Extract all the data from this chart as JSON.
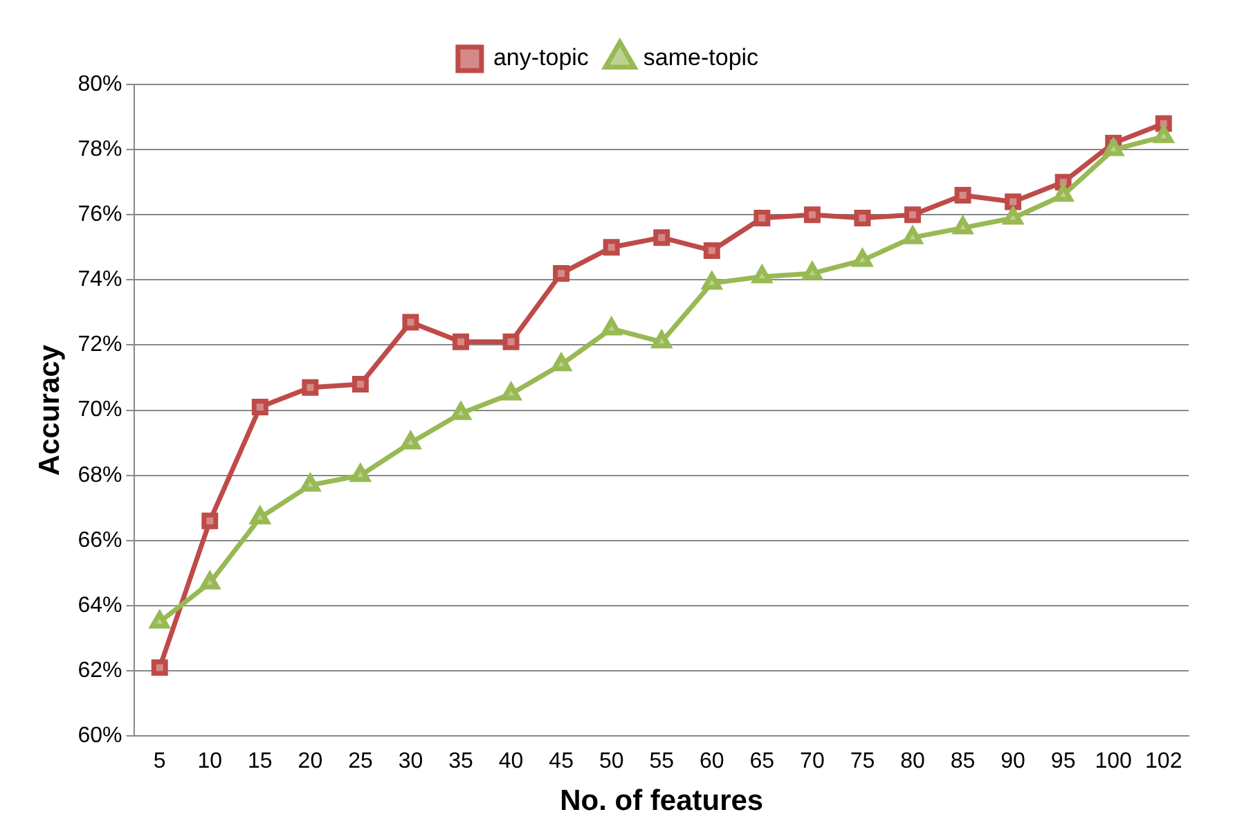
{
  "chart_data": {
    "type": "line",
    "xlabel": "No. of features",
    "ylabel": "Accuracy",
    "categories": [
      "5",
      "10",
      "15",
      "20",
      "25",
      "30",
      "35",
      "40",
      "45",
      "50",
      "55",
      "60",
      "65",
      "70",
      "75",
      "80",
      "85",
      "90",
      "95",
      "100",
      "102"
    ],
    "series": [
      {
        "name": "any-topic",
        "color": "#be4b48",
        "marker": "square",
        "values": [
          62.1,
          66.6,
          70.1,
          70.7,
          70.8,
          72.7,
          72.1,
          72.1,
          74.2,
          75.0,
          75.3,
          74.9,
          75.9,
          76.0,
          75.9,
          76.0,
          76.6,
          76.4,
          77.0,
          78.2,
          78.8
        ]
      },
      {
        "name": "same-topic",
        "color": "#98b954",
        "marker": "triangle",
        "values": [
          63.5,
          64.7,
          66.7,
          67.7,
          68.0,
          69.0,
          69.9,
          70.5,
          71.4,
          72.5,
          72.1,
          73.9,
          74.1,
          74.2,
          74.6,
          75.3,
          75.6,
          75.9,
          76.6,
          78.0,
          78.4
        ]
      }
    ],
    "ylim": [
      60,
      80
    ],
    "yticks": [
      {
        "value": 60,
        "label": "60%"
      },
      {
        "value": 62,
        "label": "62%"
      },
      {
        "value": 64,
        "label": "64%"
      },
      {
        "value": 66,
        "label": "66%"
      },
      {
        "value": 68,
        "label": "68%"
      },
      {
        "value": 70,
        "label": "70%"
      },
      {
        "value": 72,
        "label": "72%"
      },
      {
        "value": 74,
        "label": "74%"
      },
      {
        "value": 76,
        "label": "76%"
      },
      {
        "value": 78,
        "label": "78%"
      },
      {
        "value": 80,
        "label": "80%"
      }
    ],
    "grid": "y",
    "legend": "top",
    "line_style": "solid"
  }
}
